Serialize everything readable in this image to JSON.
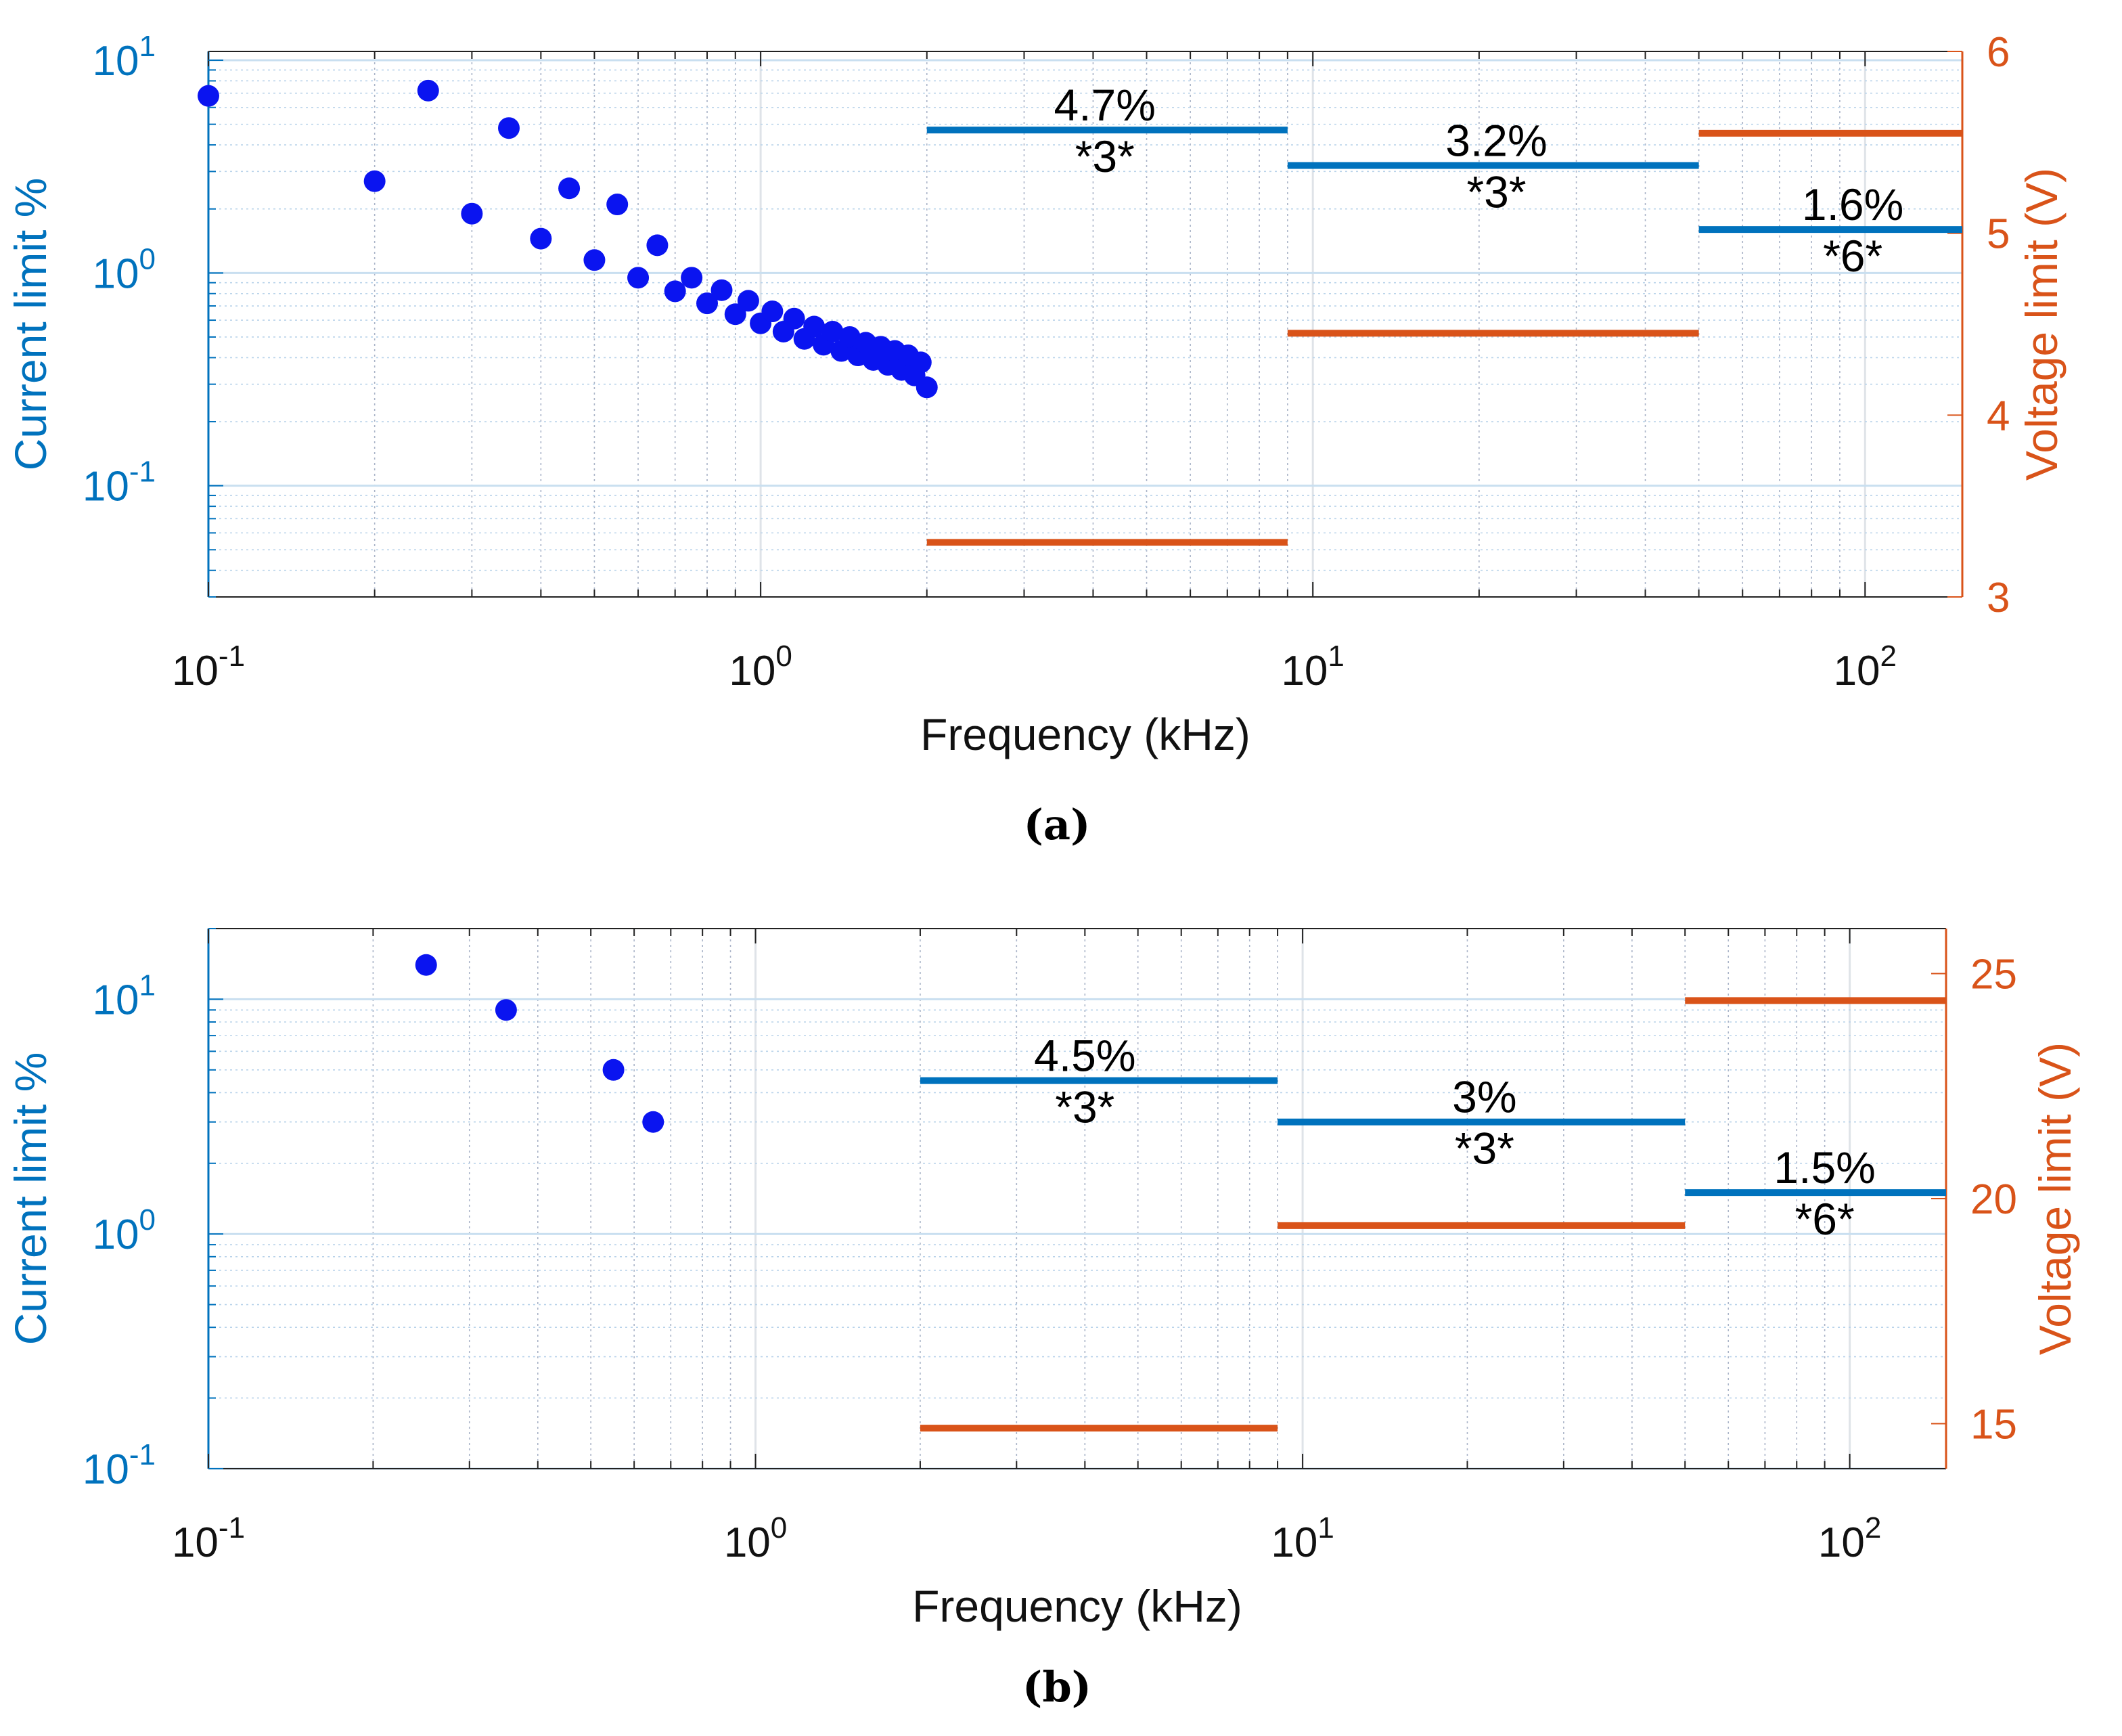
{
  "colors": {
    "current": "#0072bd",
    "voltage": "#d95319",
    "dots": "#0a14f0",
    "grid_major": "#dfe3e8",
    "grid_minor": "#aab4c8",
    "axis": "#222222",
    "label_text": "#000000"
  },
  "chart_data": [
    {
      "type": "scatter",
      "caption": "(a)",
      "xlabel": "Frequency (kHz)",
      "ylabel_left": "Current limit %",
      "ylabel_right": "Voltage limit (V)",
      "x_scale": "log",
      "xlim": [
        0.1,
        150
      ],
      "x_ticks": [
        {
          "value": 0.1,
          "base": "10",
          "exp": "-1"
        },
        {
          "value": 1,
          "base": "10",
          "exp": "0"
        },
        {
          "value": 10,
          "base": "10",
          "exp": "1"
        },
        {
          "value": 100,
          "base": "10",
          "exp": "2"
        }
      ],
      "y_left_scale": "log",
      "y_left_lim": [
        0.03,
        11
      ],
      "y_left_ticks": [
        {
          "value": 0.1,
          "base": "10",
          "exp": "-1"
        },
        {
          "value": 1,
          "base": "10",
          "exp": "0"
        },
        {
          "value": 10,
          "base": "10",
          "exp": "1"
        }
      ],
      "y_right_scale": "linear",
      "y_right_lim": [
        3,
        6
      ],
      "y_right_ticks": [
        {
          "value": 3,
          "label": "3"
        },
        {
          "value": 4,
          "label": "4"
        },
        {
          "value": 5,
          "label": "5"
        },
        {
          "value": 6,
          "label": "6"
        }
      ],
      "grid": true,
      "series": [
        {
          "name": "Current limit points",
          "kind": "scatter",
          "axis": "left",
          "points": [
            [
              0.1,
              6.8
            ],
            [
              0.2,
              2.7
            ],
            [
              0.25,
              7.2
            ],
            [
              0.3,
              1.9
            ],
            [
              0.35,
              4.8
            ],
            [
              0.4,
              1.45
            ],
            [
              0.45,
              2.5
            ],
            [
              0.5,
              1.15
            ],
            [
              0.55,
              2.1
            ],
            [
              0.6,
              0.95
            ],
            [
              0.65,
              1.35
            ],
            [
              0.7,
              0.82
            ],
            [
              0.75,
              0.95
            ],
            [
              0.8,
              0.72
            ],
            [
              0.85,
              0.83
            ],
            [
              0.9,
              0.64
            ],
            [
              0.95,
              0.74
            ],
            [
              1.0,
              0.58
            ],
            [
              1.05,
              0.66
            ],
            [
              1.1,
              0.53
            ],
            [
              1.15,
              0.61
            ],
            [
              1.2,
              0.49
            ],
            [
              1.25,
              0.56
            ],
            [
              1.3,
              0.46
            ],
            [
              1.35,
              0.53
            ],
            [
              1.4,
              0.43
            ],
            [
              1.45,
              0.5
            ],
            [
              1.5,
              0.41
            ],
            [
              1.55,
              0.47
            ],
            [
              1.6,
              0.39
            ],
            [
              1.65,
              0.45
            ],
            [
              1.7,
              0.37
            ],
            [
              1.75,
              0.43
            ],
            [
              1.8,
              0.35
            ],
            [
              1.85,
              0.41
            ],
            [
              1.9,
              0.33
            ],
            [
              1.95,
              0.38
            ],
            [
              2.0,
              0.29
            ]
          ]
        },
        {
          "name": "Current limit segments",
          "kind": "segments",
          "axis": "left",
          "segments": [
            {
              "x0": 2,
              "x1": 9,
              "y": 4.7
            },
            {
              "x0": 9,
              "x1": 50,
              "y": 3.2
            },
            {
              "x0": 50,
              "x1": 150,
              "y": 1.6
            }
          ]
        },
        {
          "name": "Voltage limit segments",
          "kind": "segments",
          "axis": "right",
          "segments": [
            {
              "x0": 2,
              "x1": 9,
              "y": 3.3
            },
            {
              "x0": 9,
              "x1": 50,
              "y": 4.45
            },
            {
              "x0": 50,
              "x1": 150,
              "y": 5.55
            }
          ]
        }
      ],
      "annotations": [
        {
          "top": "4.7%",
          "bottom": "*3*",
          "x": 4.2,
          "y": 4.7
        },
        {
          "top": "3.2%",
          "bottom": "*3*",
          "x": 21.5,
          "y": 3.2
        },
        {
          "top": "1.6%",
          "bottom": "*6*",
          "x": 95,
          "y": 1.6
        }
      ]
    },
    {
      "type": "scatter",
      "caption": "(b)",
      "xlabel": "Frequency (kHz)",
      "ylabel_left": "Current limit %",
      "ylabel_right": "Voltage limit (V)",
      "x_scale": "log",
      "xlim": [
        0.1,
        150
      ],
      "x_ticks": [
        {
          "value": 0.1,
          "base": "10",
          "exp": "-1"
        },
        {
          "value": 1,
          "base": "10",
          "exp": "0"
        },
        {
          "value": 10,
          "base": "10",
          "exp": "1"
        },
        {
          "value": 100,
          "base": "10",
          "exp": "2"
        }
      ],
      "y_left_scale": "log",
      "y_left_lim": [
        0.1,
        20
      ],
      "y_left_ticks": [
        {
          "value": 0.1,
          "base": "10",
          "exp": "-1"
        },
        {
          "value": 1,
          "base": "10",
          "exp": "0"
        },
        {
          "value": 10,
          "base": "10",
          "exp": "1"
        }
      ],
      "y_right_scale": "linear",
      "y_right_lim": [
        14,
        26
      ],
      "y_right_ticks": [
        {
          "value": 15,
          "label": "15"
        },
        {
          "value": 20,
          "label": "20"
        },
        {
          "value": 25,
          "label": "25"
        }
      ],
      "grid": true,
      "series": [
        {
          "name": "Current limit points",
          "kind": "scatter",
          "axis": "left",
          "points": [
            [
              0.25,
              14
            ],
            [
              0.35,
              9
            ],
            [
              0.55,
              5
            ],
            [
              0.65,
              3
            ]
          ]
        },
        {
          "name": "Current limit segments",
          "kind": "segments",
          "axis": "left",
          "segments": [
            {
              "x0": 2,
              "x1": 9,
              "y": 4.5
            },
            {
              "x0": 9,
              "x1": 50,
              "y": 3
            },
            {
              "x0": 50,
              "x1": 150,
              "y": 1.5
            }
          ]
        },
        {
          "name": "Voltage limit segments",
          "kind": "segments",
          "axis": "right",
          "segments": [
            {
              "x0": 2,
              "x1": 9,
              "y": 14.9
            },
            {
              "x0": 9,
              "x1": 50,
              "y": 19.4
            },
            {
              "x0": 50,
              "x1": 150,
              "y": 24.4
            }
          ]
        }
      ],
      "annotations": [
        {
          "top": "4.5%",
          "bottom": "*3*",
          "x": 4.0,
          "y": 4.5
        },
        {
          "top": "3%",
          "bottom": "*3*",
          "x": 21.5,
          "y": 3
        },
        {
          "top": "1.5%",
          "bottom": "*6*",
          "x": 90,
          "y": 1.5
        }
      ]
    }
  ]
}
